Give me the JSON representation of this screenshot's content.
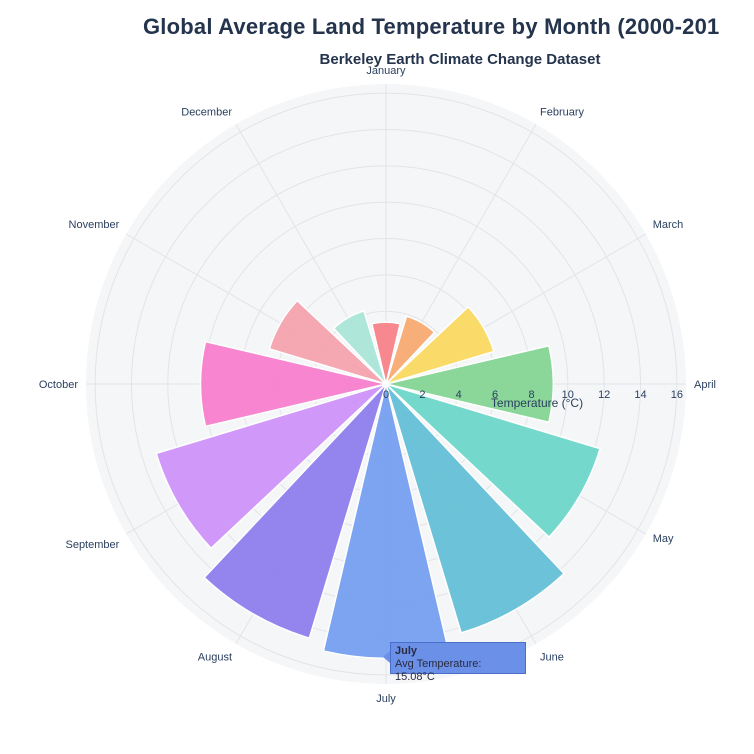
{
  "title": "Global Average Land Temperature by Month (2000-201",
  "subtitle": "Berkeley Earth Climate Change Dataset",
  "colors": {
    "background": "#f5f6f7",
    "grid": "#e2e4e8",
    "text": "#2a3f5f",
    "tooltip": "#6b90e8"
  },
  "chart_data": {
    "type": "barpolar",
    "title": "Global Average Land Temperature by Month (2000-201",
    "subtitle": "Berkeley Earth Climate Change Dataset",
    "radial_axis_title": "Temperature (°C)",
    "radial_range": [
      0,
      16.5
    ],
    "radial_ticks": [
      "0",
      "2",
      "4",
      "6",
      "8",
      "10",
      "12",
      "14",
      "16"
    ],
    "angular_direction": "clockwise",
    "angular_start": "January at top",
    "grid": true,
    "categories": [
      "January",
      "February",
      "March",
      "April",
      "May",
      "June",
      "July",
      "August",
      "September",
      "October",
      "November",
      "December"
    ],
    "values": [
      3.4,
      3.9,
      6.2,
      9.2,
      12.3,
      14.3,
      15.08,
      14.6,
      13.2,
      10.2,
      6.7,
      4.2
    ],
    "colors": [
      "#f87c83",
      "#f8a66a",
      "#fbd85a",
      "#7fd48f",
      "#66d6c6",
      "#5dbcd4",
      "#6f9bef",
      "#8a78ec",
      "#cc8ef8",
      "#f779cb",
      "#f59eaa",
      "#a6e6d6"
    ],
    "tooltip": {
      "category": "July",
      "label": "Avg Temperature: 15.08°C"
    }
  }
}
